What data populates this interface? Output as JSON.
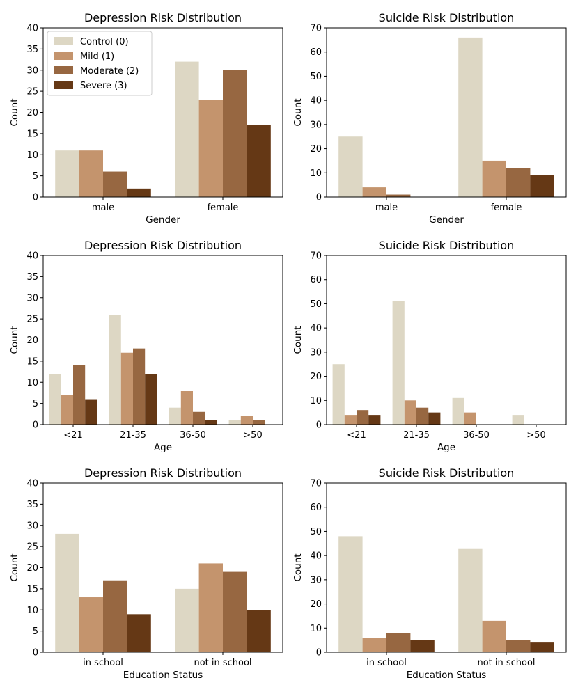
{
  "colors": {
    "control": "#ddd7c4",
    "mild": "#c4946d",
    "moderate": "#976741",
    "severe": "#653815",
    "axis": "#000000"
  },
  "legend": {
    "entries": [
      "Control (0)",
      "Mild (1)",
      "Moderate (2)",
      "Severe (3)"
    ],
    "placement": "upper-left of first chart"
  },
  "chart_data": [
    {
      "type": "bar",
      "title": "Depression Risk Distribution",
      "xlabel": "Gender",
      "ylabel": "Count",
      "categories": [
        "male",
        "female"
      ],
      "ylim": [
        0,
        40
      ],
      "yticks": [
        0,
        5,
        10,
        15,
        20,
        25,
        30,
        35,
        40
      ],
      "series": [
        {
          "name": "Control (0)",
          "values": [
            11,
            32
          ]
        },
        {
          "name": "Mild (1)",
          "values": [
            11,
            23
          ]
        },
        {
          "name": "Moderate (2)",
          "values": [
            6,
            30
          ]
        },
        {
          "name": "Severe (3)",
          "values": [
            2,
            17
          ]
        }
      ]
    },
    {
      "type": "bar",
      "title": "Suicide Risk Distribution",
      "xlabel": "Gender",
      "ylabel": "Count",
      "categories": [
        "male",
        "female"
      ],
      "ylim": [
        0,
        70
      ],
      "yticks": [
        0,
        10,
        20,
        30,
        40,
        50,
        60,
        70
      ],
      "series": [
        {
          "name": "Control (0)",
          "values": [
            25,
            66
          ]
        },
        {
          "name": "Mild (1)",
          "values": [
            4,
            15
          ]
        },
        {
          "name": "Moderate (2)",
          "values": [
            1,
            12
          ]
        },
        {
          "name": "Severe (3)",
          "values": [
            0,
            9
          ]
        }
      ]
    },
    {
      "type": "bar",
      "title": "Depression Risk Distribution",
      "xlabel": "Age",
      "ylabel": "Count",
      "categories": [
        "<21",
        "21-35",
        "36-50",
        ">50"
      ],
      "ylim": [
        0,
        40
      ],
      "yticks": [
        0,
        5,
        10,
        15,
        20,
        25,
        30,
        35,
        40
      ],
      "series": [
        {
          "name": "Control (0)",
          "values": [
            12,
            26,
            4,
            1
          ]
        },
        {
          "name": "Mild (1)",
          "values": [
            7,
            17,
            8,
            2
          ]
        },
        {
          "name": "Moderate (2)",
          "values": [
            14,
            18,
            3,
            1
          ]
        },
        {
          "name": "Severe (3)",
          "values": [
            6,
            12,
            1,
            0
          ]
        }
      ]
    },
    {
      "type": "bar",
      "title": "Suicide Risk Distribution",
      "xlabel": "Age",
      "ylabel": "Count",
      "categories": [
        "<21",
        "21-35",
        "36-50",
        ">50"
      ],
      "ylim": [
        0,
        70
      ],
      "yticks": [
        0,
        10,
        20,
        30,
        40,
        50,
        60,
        70
      ],
      "series": [
        {
          "name": "Control (0)",
          "values": [
            25,
            51,
            11,
            4
          ]
        },
        {
          "name": "Mild (1)",
          "values": [
            4,
            10,
            5,
            0
          ]
        },
        {
          "name": "Moderate (2)",
          "values": [
            6,
            7,
            0,
            0
          ]
        },
        {
          "name": "Severe (3)",
          "values": [
            4,
            5,
            0,
            0
          ]
        }
      ]
    },
    {
      "type": "bar",
      "title": "Depression Risk Distribution",
      "xlabel": "Education Status",
      "ylabel": "Count",
      "categories": [
        "in school",
        "not in school"
      ],
      "ylim": [
        0,
        40
      ],
      "yticks": [
        0,
        5,
        10,
        15,
        20,
        25,
        30,
        35,
        40
      ],
      "series": [
        {
          "name": "Control (0)",
          "values": [
            28,
            15
          ]
        },
        {
          "name": "Mild (1)",
          "values": [
            13,
            21
          ]
        },
        {
          "name": "Moderate (2)",
          "values": [
            17,
            19
          ]
        },
        {
          "name": "Severe (3)",
          "values": [
            9,
            10
          ]
        }
      ]
    },
    {
      "type": "bar",
      "title": "Suicide Risk Distribution",
      "xlabel": "Education Status",
      "ylabel": "Count",
      "categories": [
        "in school",
        "not in school"
      ],
      "ylim": [
        0,
        70
      ],
      "yticks": [
        0,
        10,
        20,
        30,
        40,
        50,
        60,
        70
      ],
      "series": [
        {
          "name": "Control (0)",
          "values": [
            48,
            43
          ]
        },
        {
          "name": "Mild (1)",
          "values": [
            6,
            13
          ]
        },
        {
          "name": "Moderate (2)",
          "values": [
            8,
            5
          ]
        },
        {
          "name": "Severe (3)",
          "values": [
            5,
            4
          ]
        }
      ]
    }
  ]
}
